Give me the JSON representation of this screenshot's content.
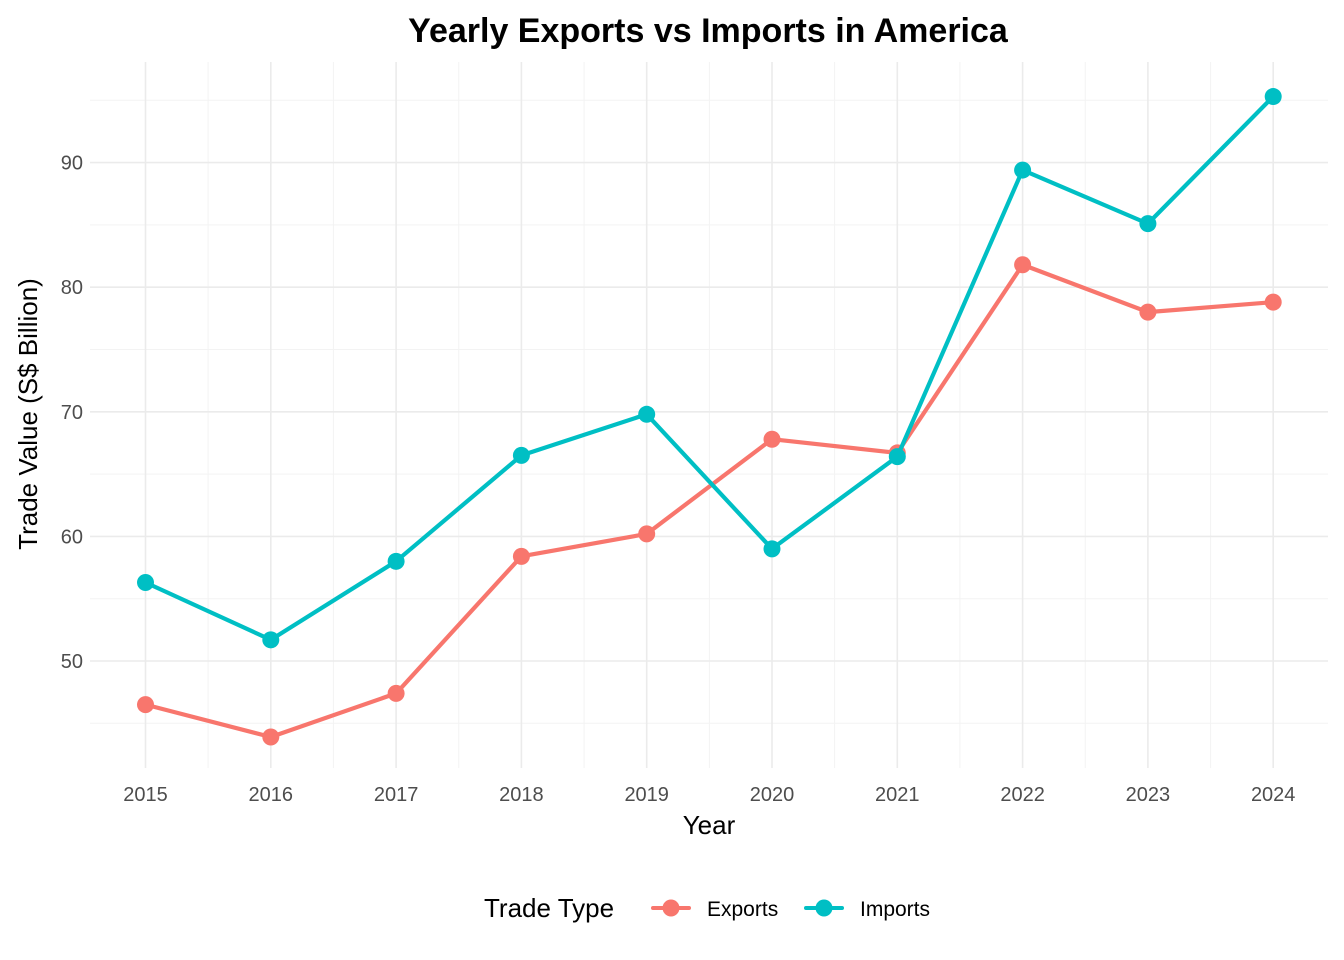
{
  "chart_data": {
    "type": "line",
    "title": "Yearly Exports vs Imports in America",
    "xlabel": "Year",
    "ylabel": "Trade Value (S$ Billion)",
    "x": [
      2015,
      2016,
      2017,
      2018,
      2019,
      2020,
      2021,
      2022,
      2023,
      2024
    ],
    "x_tick_labels": [
      "2015",
      "2016",
      "2017",
      "2018",
      "2019",
      "2020",
      "2021",
      "2022",
      "2023",
      "2024"
    ],
    "y_ticks": [
      50,
      60,
      70,
      80,
      90
    ],
    "y_tick_labels": [
      "50",
      "60",
      "70",
      "80",
      "90"
    ],
    "ylim": [
      41.8,
      97.4
    ],
    "grid": true,
    "legend": {
      "title": "Trade Type",
      "position": "bottom"
    },
    "series": [
      {
        "name": "Exports",
        "color": "#f8766d",
        "values": [
          46.5,
          43.9,
          47.4,
          58.4,
          60.2,
          67.8,
          66.7,
          81.8,
          78.0,
          78.8
        ]
      },
      {
        "name": "Imports",
        "color": "#00bfc4",
        "values": [
          56.3,
          51.7,
          58.0,
          66.5,
          69.8,
          59.0,
          66.4,
          89.4,
          85.1,
          95.3
        ]
      }
    ]
  }
}
